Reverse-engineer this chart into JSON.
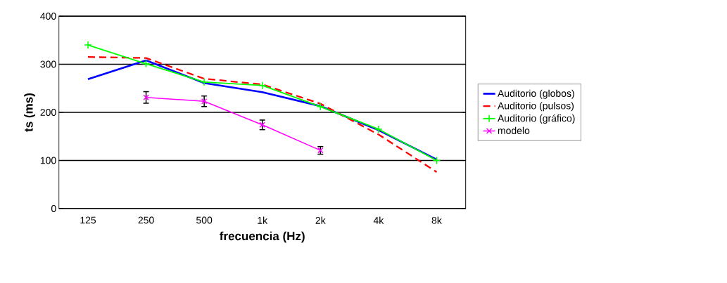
{
  "chart_data": {
    "type": "line",
    "xlabel": "frecuencia (Hz)",
    "ylabel": "ts (ms)",
    "categories": [
      "125",
      "250",
      "500",
      "1k",
      "2k",
      "4k",
      "8k"
    ],
    "ylim": [
      0,
      400
    ],
    "yticks": [
      0,
      100,
      200,
      300,
      400
    ],
    "grid": "y",
    "legend": "right",
    "series": [
      {
        "name": "Auditorio (globos)",
        "color": "#0000ff",
        "line_style": "solid",
        "marker": "none",
        "values": [
          269,
          308,
          261,
          242,
          213,
          163,
          102
        ]
      },
      {
        "name": "Auditorio (pulsos)",
        "color": "#ff0000",
        "line_style": "dashed",
        "marker": "none",
        "values": [
          315,
          313,
          270,
          258,
          218,
          154,
          76
        ]
      },
      {
        "name": "Auditorio (gráfico)",
        "color": "#00ff00",
        "line_style": "solid",
        "marker": "cross",
        "values": [
          340,
          301,
          263,
          256,
          212,
          165,
          100
        ]
      },
      {
        "name": "modelo",
        "color": "#ff00ff",
        "line_style": "solid",
        "marker": "x",
        "values": [
          null,
          231,
          223,
          174,
          121,
          null,
          null
        ],
        "errors": [
          null,
          12,
          11,
          10,
          8,
          null,
          null
        ]
      }
    ]
  }
}
